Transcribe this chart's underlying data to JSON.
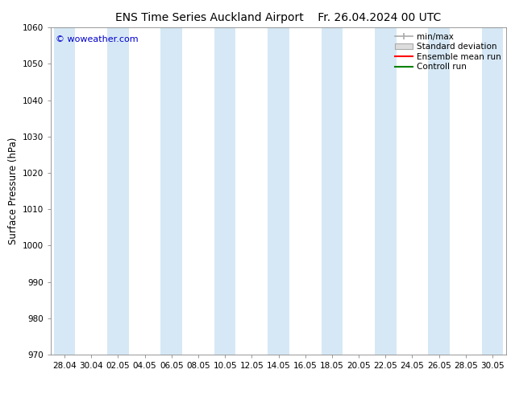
{
  "title": "ENS Time Series Auckland Airport",
  "title2": "Fr. 26.04.2024 00 UTC",
  "ylabel": "Surface Pressure (hPa)",
  "ylim": [
    970,
    1060
  ],
  "yticks": [
    970,
    980,
    990,
    1000,
    1010,
    1020,
    1030,
    1040,
    1050,
    1060
  ],
  "xtick_labels": [
    "28.04",
    "30.04",
    "02.05",
    "04.05",
    "06.05",
    "08.05",
    "10.05",
    "12.05",
    "14.05",
    "16.05",
    "18.05",
    "20.05",
    "22.05",
    "24.05",
    "26.05",
    "28.05",
    "30.05"
  ],
  "watermark": "© woweather.com",
  "watermark_color": "#0000cc",
  "bg_color": "#ffffff",
  "plot_bg_color": "#ffffff",
  "shaded_color": "#d6e8f5",
  "shaded_alpha": 1.0,
  "legend_labels": [
    "min/max",
    "Standard deviation",
    "Ensemble mean run",
    "Controll run"
  ],
  "legend_line_colors": [
    "#aaaaaa",
    "#cccccc",
    "#ff0000",
    "#008000"
  ],
  "title_fontsize": 10,
  "tick_fontsize": 7.5,
  "ylabel_fontsize": 8.5,
  "legend_fontsize": 7.5
}
